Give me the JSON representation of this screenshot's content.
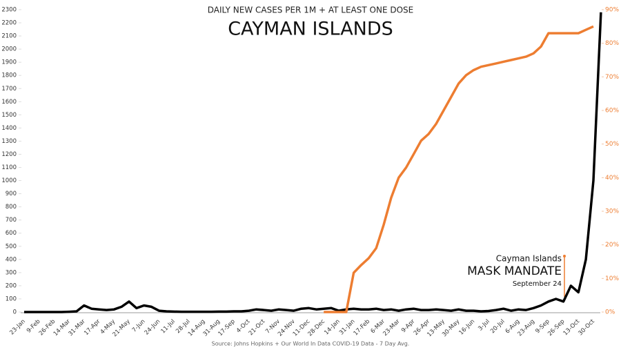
{
  "chart_data": {
    "type": "line",
    "subtitle": "DAILY NEW CASES PER 1M + AT LEAST ONE DOSE",
    "title": "CAYMAN ISLANDS",
    "source": "Source: Johns Hopkins + Our World In Data COVID-19 Data - 7 Day Avg.",
    "annotation": {
      "line1": "Cayman Islands",
      "line2": "MASK MANDATE",
      "line3": "September 24"
    },
    "categories": [
      "23-Jan",
      null,
      "9-Feb",
      null,
      "26-Feb",
      null,
      "14-Mar",
      null,
      "31-Mar",
      null,
      "17-Apr",
      null,
      "4-May",
      null,
      "21-May",
      null,
      "7-Jun",
      null,
      "24-Jun",
      null,
      "11-Jul",
      null,
      "28-Jul",
      null,
      "14-Aug",
      null,
      "31-Aug",
      null,
      "17-Sep",
      null,
      "4-Oct",
      null,
      "21-Oct",
      null,
      "7-Nov",
      null,
      "24-Nov",
      null,
      "11-Dec",
      null,
      "28-Dec",
      null,
      "14-Jan",
      null,
      "31-Jan",
      null,
      "17-Feb",
      null,
      "6-Mar",
      null,
      "23-Mar",
      null,
      "9-Apr",
      null,
      "26-Apr",
      null,
      "13-May",
      null,
      "30-May",
      null,
      "16-Jun",
      null,
      "3-Jul",
      null,
      "20-Jul",
      null,
      "6-Aug",
      null,
      "23-Aug",
      null,
      "9-Sep",
      null,
      "26-Sep",
      null,
      "13-Oct",
      null,
      "30-Oct",
      null
    ],
    "series": [
      {
        "name": "Daily new cases per 1M",
        "color": "#000000",
        "values": [
          0,
          0,
          0,
          0,
          0,
          0,
          2,
          5,
          50,
          25,
          20,
          15,
          20,
          40,
          80,
          30,
          50,
          40,
          10,
          5,
          3,
          2,
          2,
          2,
          2,
          2,
          3,
          3,
          5,
          5,
          10,
          20,
          15,
          10,
          20,
          15,
          10,
          25,
          30,
          20,
          25,
          30,
          10,
          20,
          25,
          20,
          20,
          25,
          15,
          20,
          10,
          20,
          25,
          15,
          15,
          20,
          15,
          10,
          20,
          10,
          10,
          5,
          8,
          15,
          25,
          10,
          20,
          15,
          30,
          50,
          80,
          100,
          80,
          200,
          150,
          400,
          1000,
          2280
        ]
      },
      {
        "name": "At least one dose",
        "color": "#ed7d31",
        "axis": "y2",
        "values": [
          null,
          null,
          null,
          null,
          null,
          null,
          null,
          null,
          null,
          null,
          null,
          null,
          null,
          null,
          null,
          null,
          null,
          null,
          null,
          null,
          null,
          null,
          null,
          null,
          null,
          null,
          null,
          null,
          null,
          null,
          null,
          null,
          null,
          null,
          null,
          null,
          null,
          null,
          null,
          null,
          0,
          0,
          0,
          0,
          11.7,
          14,
          16,
          19,
          26,
          34,
          40,
          43,
          47,
          51,
          53,
          56,
          60,
          64,
          68,
          70.5,
          72,
          73,
          73.5,
          74,
          74.5,
          75,
          75.5,
          76,
          77,
          79,
          83,
          83,
          83,
          83,
          83,
          84,
          85,
          null
        ]
      }
    ],
    "ylim": [
      0,
      2300
    ],
    "yticks": [
      0,
      100,
      200,
      300,
      400,
      500,
      600,
      700,
      800,
      900,
      1000,
      1100,
      1200,
      1300,
      1400,
      1500,
      1600,
      1700,
      1800,
      1900,
      2000,
      2100,
      2200,
      2300
    ],
    "y2lim": [
      0,
      90
    ],
    "y2ticks": [
      {
        "value": 0,
        "label": "0%"
      },
      {
        "value": 10,
        "label": "10%"
      },
      {
        "value": 20,
        "label": "20%"
      },
      {
        "value": 30,
        "label": "30%"
      },
      {
        "value": 40,
        "label": "40%"
      },
      {
        "value": 50,
        "label": "50%"
      },
      {
        "value": 60,
        "label": "60%"
      },
      {
        "value": 70,
        "label": "70%"
      },
      {
        "value": 80,
        "label": "80%"
      },
      {
        "value": 90,
        "label": "90%"
      }
    ]
  }
}
